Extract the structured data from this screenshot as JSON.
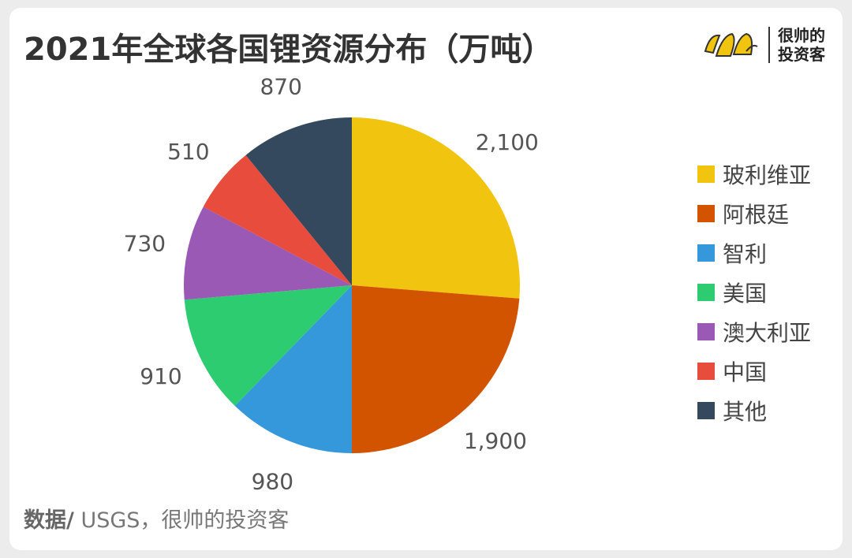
{
  "title": "2021年全球各国锂资源分布（万吨）",
  "brand": {
    "line1": "很帅的",
    "line2": "投资客"
  },
  "source": {
    "label": "数据/",
    "text": " USGS，很帅的投资客"
  },
  "chart_data": {
    "type": "pie",
    "title": "2021年全球各国锂资源分布（万吨）",
    "start_angle_deg": 0,
    "direction": "clockwise",
    "legend_position": "right",
    "slices": [
      {
        "name": "玻利维亚",
        "value": 2100,
        "label": "2,100",
        "color": "#f1c40f"
      },
      {
        "name": "阿根廷",
        "value": 1900,
        "label": "1,900",
        "color": "#d35400"
      },
      {
        "name": "智利",
        "value": 980,
        "label": "980",
        "color": "#3498db"
      },
      {
        "name": "美国",
        "value": 910,
        "label": "910",
        "color": "#2ecc71"
      },
      {
        "name": "澳大利亚",
        "value": 730,
        "label": "730",
        "color": "#9b59b6"
      },
      {
        "name": "中国",
        "value": 510,
        "label": "510",
        "color": "#e74c3c"
      },
      {
        "name": "其他",
        "value": 870,
        "label": "870",
        "color": "#34495e"
      }
    ]
  }
}
